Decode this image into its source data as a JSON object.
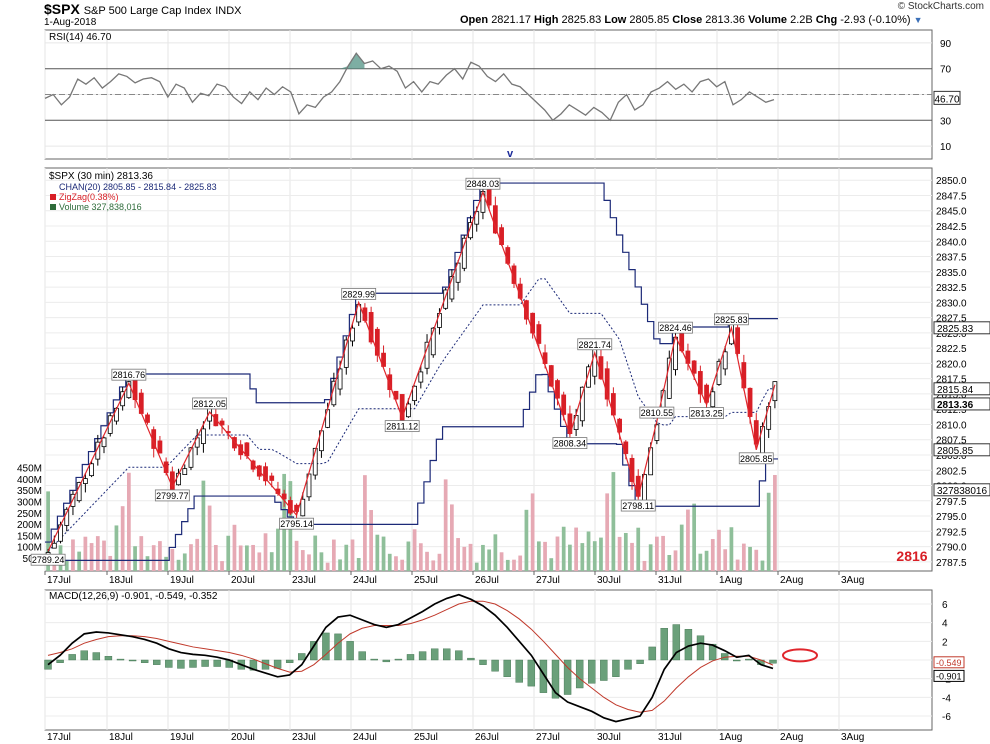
{
  "header": {
    "symbol": "$SPX",
    "name": "S&P 500 Large Cap Index",
    "exchange": "INDX",
    "date": "1-Aug-2018",
    "open_label": "Open",
    "open": "2821.17",
    "high_label": "High",
    "high": "2825.83",
    "low_label": "Low",
    "low": "2805.85",
    "close_label": "Close",
    "close": "2813.36",
    "volume_label": "Volume",
    "volume": "2.2B",
    "chg_label": "Chg",
    "chg": "-2.93 (-0.10%)",
    "copyright": "© StockCharts.com"
  },
  "chart_data": [
    {
      "type": "line",
      "panel": "rsi",
      "legend": "RSI(14) 46.70",
      "ylim": [
        0,
        100
      ],
      "ticks": [
        10,
        30,
        50,
        70,
        90
      ],
      "current_label": "46.70",
      "grid": true,
      "series": [
        {
          "name": "RSI(14)",
          "values": [
            47,
            50,
            42,
            48,
            62,
            58,
            63,
            55,
            60,
            66,
            64,
            59,
            62,
            63,
            60,
            48,
            58,
            55,
            44,
            51,
            49,
            58,
            56,
            48,
            43,
            52,
            46,
            55,
            50,
            56,
            52,
            35,
            42,
            40,
            48,
            52,
            60,
            72,
            82,
            74,
            76,
            70,
            72,
            68,
            55,
            60,
            52,
            60,
            58,
            65,
            70,
            62,
            75,
            72,
            64,
            60,
            66,
            58,
            56,
            50,
            44,
            38,
            30,
            35,
            42,
            38,
            34,
            40,
            36,
            30,
            44,
            50,
            38,
            42,
            52,
            55,
            60,
            54,
            58,
            52,
            60,
            62,
            56,
            60,
            42,
            46,
            52,
            48,
            44,
            46
          ]
        }
      ]
    },
    {
      "type": "candlestick",
      "panel": "price",
      "legends": [
        "$SPX (30 min) 2813.36",
        "CHAN(20) 2805.85 - 2815.84 - 2825.83",
        "ZigZag(0.38%)",
        "Volume 327,838,016"
      ],
      "ylim": [
        2786,
        2852
      ],
      "ticks": [
        2787.5,
        2790,
        2792.5,
        2795,
        2797.5,
        2800,
        2802.5,
        2805,
        2807.5,
        2810,
        2812.5,
        2815,
        2817.5,
        2820,
        2822.5,
        2825,
        2827.5,
        2830,
        2832.5,
        2835,
        2837.5,
        2840,
        2842.5,
        2845,
        2847.5,
        2850
      ],
      "x_labels": [
        "17Jul",
        "18Jul",
        "19Jul",
        "20Jul",
        "23Jul",
        "24Jul",
        "25Jul",
        "26Jul",
        "27Jul",
        "30Jul",
        "31Jul",
        "1Aug",
        "2Aug",
        "3Aug"
      ],
      "annotation_v": "v",
      "big_label": "2816",
      "price_tags": {
        "upper": "2825.83",
        "middle": "2815.84",
        "close": "2813.36",
        "lower": "2805.85",
        "volume": "327838016"
      },
      "zigzag": [
        {
          "i": 0,
          "v": 2789.24,
          "label": "2789.24"
        },
        {
          "i": 13,
          "v": 2816.76,
          "label": "2816.76"
        },
        {
          "i": 20,
          "v": 2799.77,
          "label": "2799.77"
        },
        {
          "i": 26,
          "v": 2812.05,
          "label": "2812.05"
        },
        {
          "i": 40,
          "v": 2795.14,
          "label": "2795.14"
        },
        {
          "i": 50,
          "v": 2829.99,
          "label": "2829.99"
        },
        {
          "i": 57,
          "v": 2811.12,
          "label": "2811.12"
        },
        {
          "i": 70,
          "v": 2848.03,
          "label": "2848.03"
        },
        {
          "i": 84,
          "v": 2808.34,
          "label": "2808.34"
        },
        {
          "i": 88,
          "v": 2821.74,
          "label": "2821.74"
        },
        {
          "i": 95,
          "v": 2798.11,
          "label": "2798.11"
        },
        {
          "i": 98,
          "v": 2810.55,
          "label": "2810.55"
        },
        {
          "i": 101,
          "v": 2824.46,
          "label": "2824.46"
        },
        {
          "i": 106,
          "v": 2813.25,
          "label": "2813.25"
        },
        {
          "i": 110,
          "v": 2825.83,
          "label": "2825.83"
        },
        {
          "i": 114,
          "v": 2805.85,
          "label": "2805.85"
        },
        {
          "i": 117,
          "v": 2816.5,
          "label": ""
        }
      ],
      "volume_axis": {
        "labels": [
          "50M",
          "100M",
          "150M",
          "200M",
          "250M",
          "300M",
          "350M",
          "400M",
          "450M"
        ]
      }
    },
    {
      "type": "line",
      "panel": "macd",
      "legend": "MACD(12,26,9) -0.901, -0.549, -0.352",
      "ylim": [
        -7.5,
        7.5
      ],
      "ticks": [
        -6,
        -4,
        -2,
        0,
        2,
        4,
        6
      ],
      "current_labels": [
        "-0.549",
        "-0.901"
      ],
      "series": [
        {
          "name": "MACD",
          "values": [
            -0.5,
            0.5,
            1.8,
            2.8,
            3.0,
            2.9,
            2.7,
            2.5,
            2.2,
            1.8,
            1.2,
            0.8,
            0.6,
            0.5,
            0.3,
            0.0,
            -0.5,
            -1.0,
            -1.4,
            -1.8,
            -1.6,
            -0.5,
            1.5,
            3.5,
            4.6,
            4.8,
            4.3,
            3.8,
            3.5,
            3.8,
            4.5,
            5.2,
            6.0,
            6.6,
            7.0,
            6.5,
            5.8,
            4.8,
            3.5,
            2.0,
            0.5,
            -1.5,
            -3.5,
            -4.5,
            -5.0,
            -5.5,
            -6.2,
            -6.6,
            -6.3,
            -6.0,
            -4.0,
            -1.0,
            0.8,
            1.5,
            1.8,
            1.6,
            1.0,
            0.3,
            0.5,
            -0.5,
            -0.9
          ]
        },
        {
          "name": "Signal",
          "values": [
            0.5,
            0.8,
            1.2,
            1.8,
            2.2,
            2.5,
            2.6,
            2.6,
            2.5,
            2.3,
            2.0,
            1.7,
            1.4,
            1.2,
            1.0,
            0.8,
            0.5,
            0.1,
            -0.4,
            -0.9,
            -1.3,
            -1.2,
            -0.5,
            0.6,
            1.8,
            2.8,
            3.4,
            3.7,
            3.7,
            3.7,
            3.9,
            4.3,
            4.8,
            5.4,
            6.0,
            6.3,
            6.3,
            6.0,
            5.3,
            4.4,
            3.3,
            2.0,
            0.6,
            -0.8,
            -2.0,
            -3.0,
            -4.0,
            -4.8,
            -5.3,
            -5.6,
            -5.4,
            -4.4,
            -3.0,
            -1.8,
            -0.8,
            -0.1,
            0.3,
            0.4,
            0.4,
            0.0,
            -0.549
          ]
        },
        {
          "name": "Histogram",
          "values": [
            -1.0,
            -0.3,
            0.6,
            1.0,
            0.8,
            0.4,
            0.1,
            -0.1,
            -0.3,
            -0.5,
            -0.8,
            -0.9,
            -0.8,
            -0.7,
            -0.7,
            -0.8,
            -1.0,
            -1.1,
            -1.0,
            -0.9,
            -0.3,
            0.7,
            2.0,
            2.9,
            2.8,
            2.0,
            0.9,
            0.1,
            -0.2,
            0.1,
            0.6,
            0.9,
            1.2,
            1.2,
            1.0,
            0.2,
            -0.5,
            -1.2,
            -1.8,
            -2.4,
            -2.8,
            -3.5,
            -4.1,
            -3.7,
            -3.0,
            -2.5,
            -2.2,
            -1.8,
            -1.0,
            -0.4,
            1.4,
            3.4,
            3.8,
            3.3,
            2.6,
            1.7,
            0.7,
            -0.1,
            0.1,
            -0.5,
            -0.352
          ]
        }
      ]
    }
  ]
}
